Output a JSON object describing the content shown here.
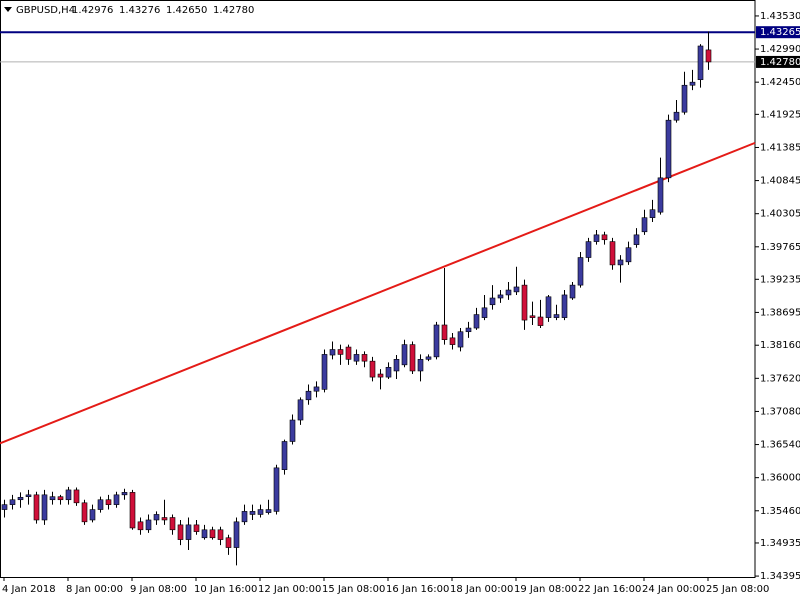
{
  "chart_data": {
    "type": "candlestick",
    "title": "GBPUSD,H4",
    "header": [
      "1.42976",
      "1.43276",
      "1.42650",
      "1.42780"
    ],
    "up_color": "#3b3b9e",
    "down_color": "#d0103a",
    "categories": [
      "4 Jan 2018",
      null,
      null,
      null,
      null,
      null,
      null,
      null,
      "8 Jan 00:00",
      null,
      null,
      null,
      null,
      null,
      null,
      null,
      "9 Jan 08:00",
      null,
      null,
      null,
      null,
      null,
      null,
      null,
      "10 Jan 16:00",
      null,
      null,
      null,
      null,
      null,
      null,
      null,
      "12 Jan 00:00",
      null,
      null,
      null,
      null,
      null,
      null,
      null,
      "15 Jan 08:00",
      null,
      null,
      null,
      null,
      null,
      null,
      null,
      "16 Jan 16:00",
      null,
      null,
      null,
      null,
      null,
      null,
      null,
      "18 Jan 00:00",
      null,
      null,
      null,
      null,
      null,
      null,
      null,
      "19 Jan 08:00",
      null,
      null,
      null,
      null,
      null,
      null,
      null,
      "22 Jan 16:00",
      null,
      null,
      null,
      null,
      null,
      null,
      null,
      "24 Jan 00:00",
      null,
      null,
      null,
      null,
      null,
      null,
      null,
      "25 Jan 08:00"
    ],
    "open": [
      1.3548,
      1.3556,
      1.3564,
      1.3569,
      1.3572,
      1.3531,
      1.3564,
      1.3569,
      1.3564,
      1.358,
      1.3559,
      1.3531,
      1.3548,
      1.3564,
      1.3556,
      1.3572,
      1.3576,
      1.3528,
      1.3515,
      1.3531,
      1.3535,
      1.3535,
      1.3523,
      1.3499,
      1.3523,
      1.3502,
      1.3515,
      1.3515,
      1.3502,
      1.3486,
      1.3528,
      1.354,
      1.354,
      1.3543,
      1.3545,
      1.3613,
      1.3659,
      1.3694,
      1.3727,
      1.3741,
      1.3744,
      1.38,
      1.3809,
      1.3813,
      1.379,
      1.3801,
      1.379,
      1.3769,
      1.3764,
      1.3774,
      1.3784,
      1.3817,
      1.3774,
      1.3793,
      1.3797,
      1.3849,
      1.3828,
      1.3813,
      1.3838,
      1.3844,
      1.3861,
      1.3882,
      1.3893,
      1.3898,
      1.3903,
      1.3914,
      1.3864,
      1.3862,
      1.3861,
      1.3861,
      1.3861,
      1.3893,
      1.3914,
      1.3959,
      1.3985,
      1.3996,
      1.3985,
      1.3947,
      1.3952,
      1.398,
      1.4001,
      1.4024,
      1.4033,
      1.4089,
      1.4183,
      1.4196,
      1.424,
      1.4249,
      1.42976
    ],
    "high": [
      1.3564,
      1.3572,
      1.3576,
      1.358,
      1.3577,
      1.358,
      1.3577,
      1.3572,
      1.3585,
      1.3584,
      1.3564,
      1.3556,
      1.3569,
      1.3572,
      1.3577,
      1.3582,
      1.358,
      1.3535,
      1.354,
      1.3545,
      1.3564,
      1.354,
      1.3531,
      1.3535,
      1.3531,
      1.3523,
      1.352,
      1.352,
      1.3507,
      1.3535,
      1.3556,
      1.3556,
      1.3556,
      1.3564,
      1.3621,
      1.3662,
      1.3703,
      1.3731,
      1.3752,
      1.3757,
      1.3809,
      1.3822,
      1.3817,
      1.3817,
      1.3809,
      1.3806,
      1.3797,
      1.3777,
      1.3788,
      1.38,
      1.3825,
      1.3822,
      1.3801,
      1.3801,
      1.3854,
      1.3942,
      1.3836,
      1.3844,
      1.3854,
      1.3877,
      1.3898,
      1.3914,
      1.3906,
      1.3919,
      1.3944,
      1.3923,
      1.3887,
      1.389,
      1.3898,
      1.3882,
      1.3906,
      1.3919,
      1.3968,
      1.3991,
      1.4004,
      1.4001,
      1.3991,
      1.3963,
      1.3985,
      1.4007,
      1.4037,
      1.4053,
      1.4122,
      1.4192,
      1.4216,
      1.4262,
      1.4265,
      1.4307,
      1.43276
    ],
    "low": [
      1.3535,
      1.3548,
      1.3551,
      1.3556,
      1.3525,
      1.3523,
      1.3556,
      1.3556,
      1.3556,
      1.3554,
      1.3523,
      1.3527,
      1.3543,
      1.3548,
      1.3551,
      1.3564,
      1.3515,
      1.3507,
      1.351,
      1.3523,
      1.3523,
      1.3507,
      1.349,
      1.3482,
      1.3507,
      1.3499,
      1.3499,
      1.349,
      1.3474,
      1.3457,
      1.3523,
      1.3531,
      1.3535,
      1.354,
      1.354,
      1.3605,
      1.3654,
      1.3686,
      1.3719,
      1.3731,
      1.3739,
      1.3793,
      1.3784,
      1.3784,
      1.3784,
      1.378,
      1.3757,
      1.3744,
      1.3761,
      1.3761,
      1.378,
      1.3769,
      1.3757,
      1.379,
      1.3793,
      1.3817,
      1.3809,
      1.3806,
      1.3828,
      1.3841,
      1.3857,
      1.3874,
      1.3885,
      1.389,
      1.3898,
      1.3841,
      1.3849,
      1.3844,
      1.3854,
      1.3857,
      1.3857,
      1.389,
      1.391,
      1.3952,
      1.398,
      1.398,
      1.3939,
      1.3918,
      1.3947,
      1.3975,
      1.3996,
      1.4017,
      1.4029,
      1.4082,
      1.4179,
      1.4192,
      1.4232,
      1.4236,
      1.4265
    ],
    "close": [
      1.3556,
      1.3564,
      1.3568,
      1.3572,
      1.3531,
      1.3572,
      1.3569,
      1.3564,
      1.358,
      1.3559,
      1.3528,
      1.3548,
      1.3564,
      1.3556,
      1.3572,
      1.3576,
      1.3518,
      1.3515,
      1.3531,
      1.354,
      1.3531,
      1.3515,
      1.3499,
      1.3523,
      1.3512,
      1.3515,
      1.3502,
      1.3499,
      1.3486,
      1.3528,
      1.3545,
      1.3545,
      1.3548,
      1.3548,
      1.3616,
      1.3659,
      1.3694,
      1.3727,
      1.3741,
      1.3748,
      1.3801,
      1.3809,
      1.3801,
      1.3793,
      1.3801,
      1.379,
      1.3764,
      1.3764,
      1.378,
      1.3793,
      1.3817,
      1.3774,
      1.3793,
      1.3797,
      1.3849,
      1.3825,
      1.3817,
      1.3838,
      1.3844,
      1.3866,
      1.3877,
      1.3893,
      1.3898,
      1.3906,
      1.3911,
      1.3857,
      1.3861,
      1.3848,
      1.3895,
      1.3866,
      1.3898,
      1.3914,
      1.3959,
      1.3985,
      1.3996,
      1.3988,
      1.3947,
      1.3955,
      1.3975,
      1.3996,
      1.4024,
      1.4037,
      1.4089,
      1.4183,
      1.4196,
      1.424,
      1.4245,
      1.4304,
      1.4278
    ],
    "ylim": [
      1.3438,
      1.4379
    ],
    "yticks": [
      {
        "value": 1.4353,
        "label": "1.43530"
      },
      {
        "value": 1.4299,
        "label": "1.42990"
      },
      {
        "value": 1.4245,
        "label": "1.42450"
      },
      {
        "value": 1.41925,
        "label": "1.41925"
      },
      {
        "value": 1.41385,
        "label": "1.41385"
      },
      {
        "value": 1.40845,
        "label": "1.40845"
      },
      {
        "value": 1.40305,
        "label": "1.40305"
      },
      {
        "value": 1.39765,
        "label": "1.39765"
      },
      {
        "value": 1.39235,
        "label": "1.39235"
      },
      {
        "value": 1.38695,
        "label": "1.38695"
      },
      {
        "value": 1.3816,
        "label": "1.38160"
      },
      {
        "value": 1.3762,
        "label": "1.37620"
      },
      {
        "value": 1.3708,
        "label": "1.37080"
      },
      {
        "value": 1.3654,
        "label": "1.36540"
      },
      {
        "value": 1.36,
        "label": "1.36000"
      },
      {
        "value": 1.3546,
        "label": "1.35460"
      },
      {
        "value": 1.34935,
        "label": "1.34935"
      },
      {
        "value": 1.34395,
        "label": "1.34395"
      }
    ],
    "hlines": [
      {
        "value": 1.43265,
        "label": "1.43265",
        "color": "#000080"
      },
      {
        "value": 1.4278,
        "label": "1.42780",
        "color": "#b0b0b0"
      }
    ],
    "trendline": {
      "values": [
        1.3656,
        1.4146
      ],
      "color": "#e41b17"
    }
  }
}
